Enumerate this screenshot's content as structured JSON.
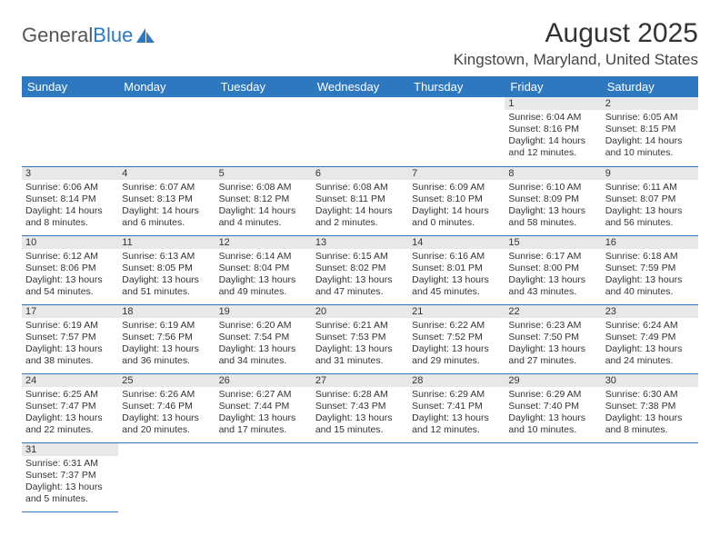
{
  "logo": {
    "text1": "General",
    "text2": "Blue"
  },
  "title": "August 2025",
  "location": "Kingstown, Maryland, United States",
  "colors": {
    "header_bg": "#2e78c0",
    "header_text": "#ffffff",
    "daynum_bg": "#e8e8e8",
    "border": "#2e78c0",
    "text": "#333333"
  },
  "weekdays": [
    "Sunday",
    "Monday",
    "Tuesday",
    "Wednesday",
    "Thursday",
    "Friday",
    "Saturday"
  ],
  "weeks": [
    [
      null,
      null,
      null,
      null,
      null,
      {
        "n": "1",
        "sr": "Sunrise: 6:04 AM",
        "ss": "Sunset: 8:16 PM",
        "dl": "Daylight: 14 hours and 12 minutes."
      },
      {
        "n": "2",
        "sr": "Sunrise: 6:05 AM",
        "ss": "Sunset: 8:15 PM",
        "dl": "Daylight: 14 hours and 10 minutes."
      }
    ],
    [
      {
        "n": "3",
        "sr": "Sunrise: 6:06 AM",
        "ss": "Sunset: 8:14 PM",
        "dl": "Daylight: 14 hours and 8 minutes."
      },
      {
        "n": "4",
        "sr": "Sunrise: 6:07 AM",
        "ss": "Sunset: 8:13 PM",
        "dl": "Daylight: 14 hours and 6 minutes."
      },
      {
        "n": "5",
        "sr": "Sunrise: 6:08 AM",
        "ss": "Sunset: 8:12 PM",
        "dl": "Daylight: 14 hours and 4 minutes."
      },
      {
        "n": "6",
        "sr": "Sunrise: 6:08 AM",
        "ss": "Sunset: 8:11 PM",
        "dl": "Daylight: 14 hours and 2 minutes."
      },
      {
        "n": "7",
        "sr": "Sunrise: 6:09 AM",
        "ss": "Sunset: 8:10 PM",
        "dl": "Daylight: 14 hours and 0 minutes."
      },
      {
        "n": "8",
        "sr": "Sunrise: 6:10 AM",
        "ss": "Sunset: 8:09 PM",
        "dl": "Daylight: 13 hours and 58 minutes."
      },
      {
        "n": "9",
        "sr": "Sunrise: 6:11 AM",
        "ss": "Sunset: 8:07 PM",
        "dl": "Daylight: 13 hours and 56 minutes."
      }
    ],
    [
      {
        "n": "10",
        "sr": "Sunrise: 6:12 AM",
        "ss": "Sunset: 8:06 PM",
        "dl": "Daylight: 13 hours and 54 minutes."
      },
      {
        "n": "11",
        "sr": "Sunrise: 6:13 AM",
        "ss": "Sunset: 8:05 PM",
        "dl": "Daylight: 13 hours and 51 minutes."
      },
      {
        "n": "12",
        "sr": "Sunrise: 6:14 AM",
        "ss": "Sunset: 8:04 PM",
        "dl": "Daylight: 13 hours and 49 minutes."
      },
      {
        "n": "13",
        "sr": "Sunrise: 6:15 AM",
        "ss": "Sunset: 8:02 PM",
        "dl": "Daylight: 13 hours and 47 minutes."
      },
      {
        "n": "14",
        "sr": "Sunrise: 6:16 AM",
        "ss": "Sunset: 8:01 PM",
        "dl": "Daylight: 13 hours and 45 minutes."
      },
      {
        "n": "15",
        "sr": "Sunrise: 6:17 AM",
        "ss": "Sunset: 8:00 PM",
        "dl": "Daylight: 13 hours and 43 minutes."
      },
      {
        "n": "16",
        "sr": "Sunrise: 6:18 AM",
        "ss": "Sunset: 7:59 PM",
        "dl": "Daylight: 13 hours and 40 minutes."
      }
    ],
    [
      {
        "n": "17",
        "sr": "Sunrise: 6:19 AM",
        "ss": "Sunset: 7:57 PM",
        "dl": "Daylight: 13 hours and 38 minutes."
      },
      {
        "n": "18",
        "sr": "Sunrise: 6:19 AM",
        "ss": "Sunset: 7:56 PM",
        "dl": "Daylight: 13 hours and 36 minutes."
      },
      {
        "n": "19",
        "sr": "Sunrise: 6:20 AM",
        "ss": "Sunset: 7:54 PM",
        "dl": "Daylight: 13 hours and 34 minutes."
      },
      {
        "n": "20",
        "sr": "Sunrise: 6:21 AM",
        "ss": "Sunset: 7:53 PM",
        "dl": "Daylight: 13 hours and 31 minutes."
      },
      {
        "n": "21",
        "sr": "Sunrise: 6:22 AM",
        "ss": "Sunset: 7:52 PM",
        "dl": "Daylight: 13 hours and 29 minutes."
      },
      {
        "n": "22",
        "sr": "Sunrise: 6:23 AM",
        "ss": "Sunset: 7:50 PM",
        "dl": "Daylight: 13 hours and 27 minutes."
      },
      {
        "n": "23",
        "sr": "Sunrise: 6:24 AM",
        "ss": "Sunset: 7:49 PM",
        "dl": "Daylight: 13 hours and 24 minutes."
      }
    ],
    [
      {
        "n": "24",
        "sr": "Sunrise: 6:25 AM",
        "ss": "Sunset: 7:47 PM",
        "dl": "Daylight: 13 hours and 22 minutes."
      },
      {
        "n": "25",
        "sr": "Sunrise: 6:26 AM",
        "ss": "Sunset: 7:46 PM",
        "dl": "Daylight: 13 hours and 20 minutes."
      },
      {
        "n": "26",
        "sr": "Sunrise: 6:27 AM",
        "ss": "Sunset: 7:44 PM",
        "dl": "Daylight: 13 hours and 17 minutes."
      },
      {
        "n": "27",
        "sr": "Sunrise: 6:28 AM",
        "ss": "Sunset: 7:43 PM",
        "dl": "Daylight: 13 hours and 15 minutes."
      },
      {
        "n": "28",
        "sr": "Sunrise: 6:29 AM",
        "ss": "Sunset: 7:41 PM",
        "dl": "Daylight: 13 hours and 12 minutes."
      },
      {
        "n": "29",
        "sr": "Sunrise: 6:29 AM",
        "ss": "Sunset: 7:40 PM",
        "dl": "Daylight: 13 hours and 10 minutes."
      },
      {
        "n": "30",
        "sr": "Sunrise: 6:30 AM",
        "ss": "Sunset: 7:38 PM",
        "dl": "Daylight: 13 hours and 8 minutes."
      }
    ],
    [
      {
        "n": "31",
        "sr": "Sunrise: 6:31 AM",
        "ss": "Sunset: 7:37 PM",
        "dl": "Daylight: 13 hours and 5 minutes."
      },
      null,
      null,
      null,
      null,
      null,
      null
    ]
  ]
}
